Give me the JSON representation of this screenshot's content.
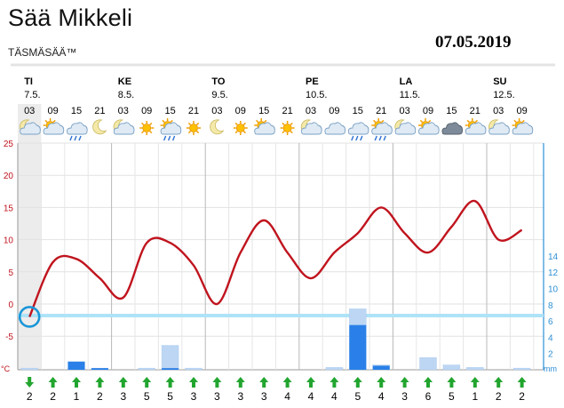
{
  "header": {
    "title": "Sää Mikkeli",
    "subtitle": "TÄSMÄSÄÄ™",
    "date": "07.05.2019"
  },
  "chart_data": {
    "type": "line",
    "days": [
      {
        "label": "TI",
        "date": "7.5."
      },
      {
        "label": "KE",
        "date": "8.5."
      },
      {
        "label": "TO",
        "date": "9.5."
      },
      {
        "label": "PE",
        "date": "10.5."
      },
      {
        "label": "LA",
        "date": "11.5."
      },
      {
        "label": "SU",
        "date": "12.5."
      }
    ],
    "hours": [
      "03",
      "09",
      "15",
      "21",
      "03",
      "09",
      "15",
      "21",
      "03",
      "09",
      "15",
      "21",
      "03",
      "09",
      "15",
      "21",
      "03",
      "09",
      "15",
      "21",
      "03",
      "09"
    ],
    "weather_icons": [
      "moon-cloud",
      "sun-cloud",
      "rain-cloud",
      "moon",
      "moon-cloud",
      "sun",
      "sun-rain-cloud",
      "sun",
      "moon",
      "sun",
      "sun-cloud",
      "sun",
      "moon-cloud",
      "cloud",
      "rain-cloud",
      "sun-rain-cloud",
      "moon-cloud",
      "sun-cloud",
      "dark-cloud",
      "sun-cloud",
      "moon-cloud",
      "sun-cloud"
    ],
    "temperature": [
      -2,
      6.5,
      7,
      4,
      1,
      9.5,
      9.5,
      6,
      0,
      8,
      13,
      8,
      4,
      8,
      11,
      15,
      11,
      8,
      12,
      16,
      10,
      11.5
    ],
    "precipitation": [
      0,
      0,
      1,
      0.2,
      0,
      0,
      0.2,
      0,
      0,
      0,
      0,
      0,
      0,
      0,
      5.5,
      0.5,
      0,
      0,
      0,
      0,
      0,
      0
    ],
    "precipitation_max": [
      0.2,
      0,
      1,
      0.2,
      0,
      0.2,
      3,
      0.2,
      0,
      0,
      0,
      0,
      0,
      0.3,
      7.5,
      0.6,
      0,
      1.5,
      0.6,
      0.3,
      0,
      0.2
    ],
    "wind_speed": [
      2,
      2,
      1,
      2,
      3,
      5,
      5,
      3,
      3,
      3,
      3,
      4,
      4,
      4,
      5,
      4,
      3,
      6,
      5,
      1,
      2,
      2
    ],
    "wind_direction": [
      "S",
      "N",
      "N",
      "N",
      "N",
      "N",
      "N",
      "N",
      "N",
      "N",
      "N",
      "N",
      "N",
      "N",
      "N",
      "N",
      "N",
      "N",
      "N",
      "N",
      "N",
      "N"
    ],
    "left_axis": {
      "unit": "°C",
      "ticks": [
        25,
        20,
        15,
        10,
        5,
        0,
        -5
      ],
      "ylim": [
        -10,
        25
      ]
    },
    "right_axis": {
      "unit": "mm",
      "ticks": [
        14,
        12,
        10,
        8,
        6,
        4,
        2
      ],
      "ylim": [
        0,
        14
      ]
    },
    "colors": {
      "temperature": "#c0141e",
      "precipitation": "#2a80e8",
      "zero_band": "#aee3f7",
      "axis": "#2d8fd6"
    }
  }
}
